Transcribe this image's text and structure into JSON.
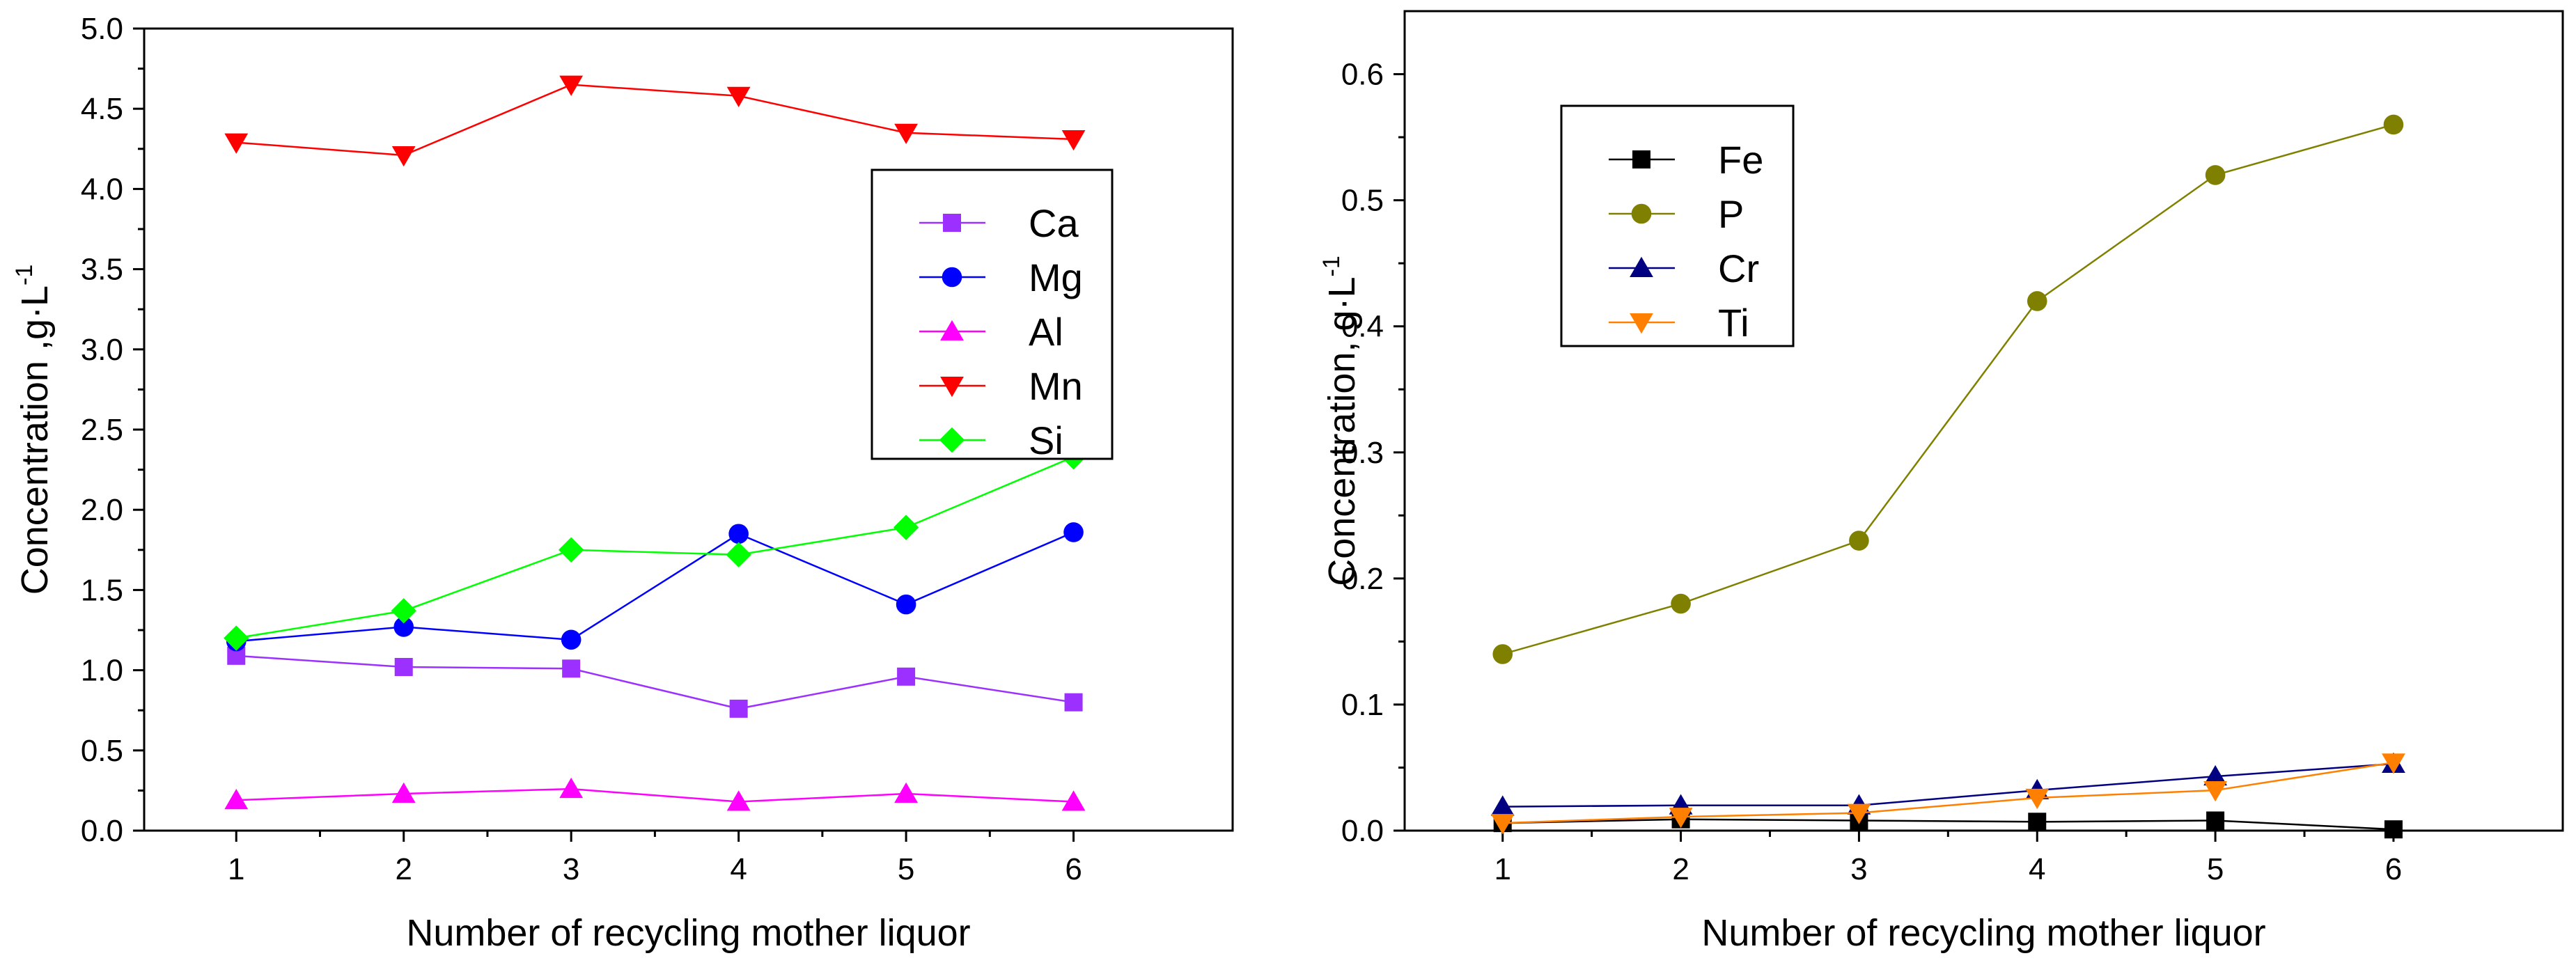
{
  "chart_data": [
    {
      "type": "line",
      "title": "",
      "xlabel": "Number of recycling mother liquor",
      "ylabel": "Concentration ,g·L",
      "ylabel_sup": "-1",
      "xlim": [
        0.45,
        6.95
      ],
      "ylim": [
        0,
        5.0
      ],
      "x_ticks": [
        1,
        2,
        3,
        4,
        5,
        6
      ],
      "y_ticks": [
        "0.0",
        "0.5",
        "1.0",
        "1.5",
        "2.0",
        "2.5",
        "3.0",
        "3.5",
        "4.0",
        "4.5",
        "5.0"
      ],
      "legend_position": "upper-right",
      "x": [
        1,
        2,
        3,
        4,
        5,
        6
      ],
      "series": [
        {
          "name": "Ca",
          "marker": "square",
          "color": "#9B30FF",
          "values": [
            1.09,
            1.02,
            1.01,
            0.76,
            0.96,
            0.8
          ]
        },
        {
          "name": "Mg",
          "marker": "circle",
          "color": "#0000FF",
          "values": [
            1.18,
            1.27,
            1.19,
            1.85,
            1.41,
            1.86
          ]
        },
        {
          "name": "Al",
          "marker": "triangle-up",
          "color": "#FF00FF",
          "values": [
            0.19,
            0.23,
            0.26,
            0.18,
            0.23,
            0.18
          ]
        },
        {
          "name": "Mn",
          "marker": "triangle-down",
          "color": "#FF0000",
          "values": [
            4.29,
            4.21,
            4.65,
            4.58,
            4.35,
            4.31
          ]
        },
        {
          "name": "Si",
          "marker": "diamond",
          "color": "#00FF00",
          "values": [
            1.2,
            1.37,
            1.75,
            1.72,
            1.89,
            2.33
          ]
        }
      ]
    },
    {
      "type": "line",
      "title": "",
      "xlabel": "Number of recycling mother liquor",
      "ylabel": "Concentration,  g·L",
      "ylabel_sup": "-1",
      "xlim": [
        0.45,
        6.95
      ],
      "ylim": [
        0,
        0.65
      ],
      "x_ticks": [
        1,
        2,
        3,
        4,
        5,
        6
      ],
      "y_ticks": [
        "0.0",
        "0.1",
        "0.2",
        "0.3",
        "0.4",
        "0.5",
        "0.6"
      ],
      "legend_position": "upper-left",
      "x": [
        1,
        2,
        3,
        4,
        5,
        6
      ],
      "series": [
        {
          "name": "Fe",
          "marker": "square",
          "color": "#000000",
          "values": [
            0.006,
            0.009,
            0.008,
            0.007,
            0.008,
            0.001
          ]
        },
        {
          "name": "P",
          "marker": "circle",
          "color": "#808000",
          "values": [
            0.14,
            0.18,
            0.23,
            0.42,
            0.52,
            0.56
          ]
        },
        {
          "name": "Cr",
          "marker": "triangle-up",
          "color": "#000080",
          "values": [
            0.019,
            0.02,
            0.02,
            0.032,
            0.043,
            0.053
          ]
        },
        {
          "name": "Ti",
          "marker": "triangle-down",
          "color": "#FF8000",
          "values": [
            0.006,
            0.011,
            0.014,
            0.026,
            0.032,
            0.054
          ]
        }
      ]
    }
  ]
}
